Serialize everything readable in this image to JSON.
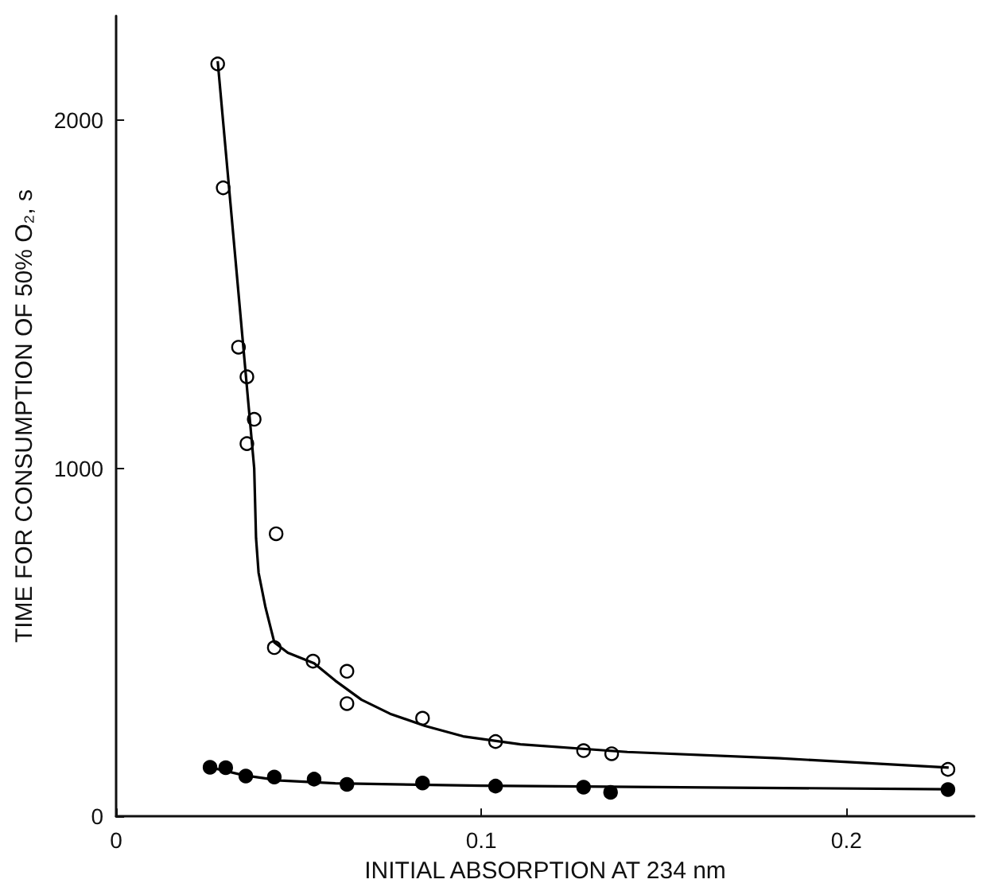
{
  "chart_data": {
    "type": "scatter",
    "xlabel": "INITIAL ABSORPTION AT 234 nm",
    "ylabel": "TIME FOR CONSUMPTION OF 50% O₂, s",
    "xlim": [
      0,
      0.235
    ],
    "xticks": [
      0,
      0.1,
      0.2
    ],
    "ylim": [
      0,
      2300
    ],
    "yticks": [
      0,
      1000,
      2000
    ],
    "grid": false,
    "marker": "circle",
    "series": [
      {
        "color": "#ffffff",
        "x": [
          0.0278,
          0.0293,
          0.0335,
          0.0358,
          0.0378,
          0.0358,
          0.0438,
          0.0433,
          0.0539,
          0.0632,
          0.0632,
          0.0839,
          0.1039,
          0.128,
          0.1357,
          0.2278
        ],
        "values": [
          2162,
          1806,
          1348,
          1263,
          1141,
          1071,
          812,
          485,
          446,
          417,
          324,
          282,
          215,
          189,
          180,
          135
        ]
      },
      {
        "color": "#000000",
        "x": [
          0.0257,
          0.03,
          0.0355,
          0.0433,
          0.0542,
          0.0632,
          0.0839,
          0.1039,
          0.128,
          0.1354,
          0.2278
        ],
        "values": [
          141,
          140,
          116,
          113,
          107,
          92,
          96,
          87,
          84,
          69,
          77
        ]
      },
      {
        "type": "line",
        "color": "#000000",
        "marker": "none",
        "x": [
          0.0278,
          0.0378,
          0.0383,
          0.039,
          0.0409,
          0.0433,
          0.047,
          0.0542,
          0.06,
          0.0672,
          0.075,
          0.0846,
          0.095,
          0.1107,
          0.14,
          0.1817,
          0.228
        ],
        "values": [
          2170,
          1000,
          800,
          700,
          600,
          500,
          470,
          440,
          390,
          335,
          295,
          260,
          230,
          207,
          185,
          167,
          140
        ]
      },
      {
        "type": "line",
        "color": "#000000",
        "marker": "none",
        "x": [
          0.0257,
          0.035,
          0.045,
          0.06,
          0.1,
          0.228
        ],
        "values": [
          141,
          118,
          103,
          95,
          88,
          78
        ]
      }
    ]
  }
}
